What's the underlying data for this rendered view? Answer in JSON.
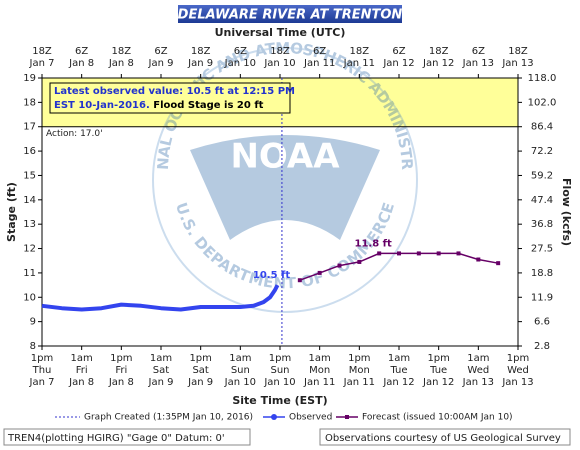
{
  "chart_data": {
    "type": "line",
    "title": "DELAWARE RIVER AT TRENTON",
    "x2_axis_label": "Universal Time (UTC)",
    "x_axis_label": "Site Time (EST)",
    "y_axis_label": "Stage (ft)",
    "y2_axis_label": "Flow (kcfs)",
    "xlim": [
      "Jan 7 13:00",
      "Jan 13 13:00"
    ],
    "xticks": [
      {
        "value": "Jan 7 13:00",
        "label": [
          "1pm",
          "Thu",
          "Jan 7"
        ]
      },
      {
        "value": "Jan 8 01:00",
        "label": [
          "1am",
          "Fri",
          "Jan 8"
        ]
      },
      {
        "value": "Jan 8 13:00",
        "label": [
          "1pm",
          "Fri",
          "Jan 8"
        ]
      },
      {
        "value": "Jan 9 01:00",
        "label": [
          "1am",
          "Sat",
          "Jan 9"
        ]
      },
      {
        "value": "Jan 9 13:00",
        "label": [
          "1pm",
          "Sat",
          "Jan 9"
        ]
      },
      {
        "value": "Jan 10 01:00",
        "label": [
          "1am",
          "Sun",
          "Jan 10"
        ]
      },
      {
        "value": "Jan 10 13:00",
        "label": [
          "1pm",
          "Sun",
          "Jan 10"
        ]
      },
      {
        "value": "Jan 11 01:00",
        "label": [
          "1am",
          "Mon",
          "Jan 11"
        ]
      },
      {
        "value": "Jan 11 13:00",
        "label": [
          "1pm",
          "Mon",
          "Jan 11"
        ]
      },
      {
        "value": "Jan 12 01:00",
        "label": [
          "1am",
          "Tue",
          "Jan 12"
        ]
      },
      {
        "value": "Jan 12 13:00",
        "label": [
          "1pm",
          "Tue",
          "Jan 12"
        ]
      },
      {
        "value": "Jan 13 01:00",
        "label": [
          "1am",
          "Wed",
          "Jan 13"
        ]
      },
      {
        "value": "Jan 13 13:00",
        "label": [
          "1pm",
          "Wed",
          "Jan 13"
        ]
      }
    ],
    "x2ticks": [
      [
        "18Z",
        "Jan 7"
      ],
      [
        "6Z",
        "Jan 8"
      ],
      [
        "18Z",
        "Jan 8"
      ],
      [
        "6Z",
        "Jan 9"
      ],
      [
        "18Z",
        "Jan 9"
      ],
      [
        "6Z",
        "Jan 10"
      ],
      [
        "18Z",
        "Jan 10"
      ],
      [
        "6Z",
        "Jan 11"
      ],
      [
        "18Z",
        "Jan 11"
      ],
      [
        "6Z",
        "Jan 12"
      ],
      [
        "18Z",
        "Jan 12"
      ],
      [
        "6Z",
        "Jan 13"
      ],
      [
        "18Z",
        "Jan 13"
      ]
    ],
    "ylim": [
      8,
      19
    ],
    "yticks": [
      8,
      9,
      10,
      11,
      12,
      13,
      14,
      15,
      16,
      17,
      18,
      19
    ],
    "y2lim": [
      2.8,
      118
    ],
    "y2ticks": [
      2.8,
      6.6,
      11.9,
      18.8,
      27.5,
      36.8,
      47.4,
      59.2,
      72.2,
      86.4,
      {
        "value": 102,
        "label": "102.0"
      },
      {
        "value": 118,
        "label": "118.0"
      }
    ],
    "grid": false,
    "action_stage": 17,
    "action_label": "Action: 17.0'",
    "action_color": "#ffff99",
    "annotation": {
      "observed_lines": [
        "Latest observed value: 10.5 ft at 12:15 PM",
        "EST 10-Jan-2016."
      ],
      "flood": "Flood Stage is 20 ft"
    },
    "created": {
      "x": "Jan 10 13:35",
      "label": "Graph Created (1:35PM Jan 10, 2016)",
      "color": "#3333cc"
    },
    "series": [
      {
        "name": "Observed",
        "color": "#3344ee",
        "x": [
          "Jan 7 13:00",
          "Jan 7 19:00",
          "Jan 8 01:00",
          "Jan 8 07:00",
          "Jan 8 13:00",
          "Jan 8 19:00",
          "Jan 9 01:00",
          "Jan 9 07:00",
          "Jan 9 13:00",
          "Jan 9 19:00",
          "Jan 10 01:00",
          "Jan 10 05:00",
          "Jan 10 08:00",
          "Jan 10 10:00",
          "Jan 10 11:30",
          "Jan 10 12:15"
        ],
        "values": [
          9.65,
          9.55,
          9.5,
          9.55,
          9.7,
          9.65,
          9.55,
          9.5,
          9.6,
          9.6,
          9.6,
          9.65,
          9.8,
          10.0,
          10.3,
          10.5
        ],
        "value_labels": [
          null,
          null,
          null,
          null,
          null,
          null,
          null,
          null,
          null,
          null,
          null,
          null,
          null,
          null,
          null,
          "10.5 ft"
        ]
      },
      {
        "name": "Forecast (issued 10:00AM Jan 10)",
        "color": "#660066",
        "x": [
          "Jan 10 19:00",
          "Jan 11 01:00",
          "Jan 11 07:00",
          "Jan 11 13:00",
          "Jan 11 19:00",
          "Jan 12 01:00",
          "Jan 12 07:00",
          "Jan 12 13:00",
          "Jan 12 19:00",
          "Jan 13 01:00",
          "Jan 13 07:00"
        ],
        "values": [
          10.7,
          11.0,
          11.3,
          11.45,
          11.8,
          11.8,
          11.8,
          11.8,
          11.8,
          11.55,
          11.4
        ],
        "value_labels": [
          null,
          null,
          null,
          null,
          "11.8 ft",
          null,
          null,
          null,
          null,
          null,
          null
        ]
      }
    ],
    "watermark": {
      "name": "NOAA",
      "ring_top": "NATIONAL OCEANIC AND ATMOSPHERIC ADMINISTRATION",
      "ring_bottom": "U.S. DEPARTMENT OF COMMERCE"
    },
    "footer_left": "TREN4(plotting HGIRG) \"Gage 0\" Datum: 0'",
    "footer_right": "Observations courtesy of US Geological Survey"
  }
}
